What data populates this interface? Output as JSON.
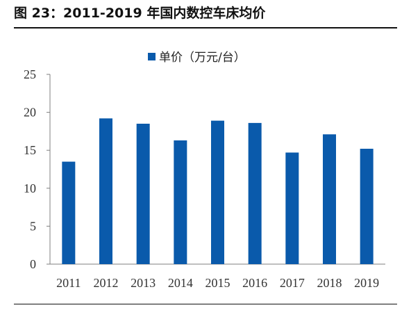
{
  "figure": {
    "title": "图 23：2011-2019 年国内数控车床均价"
  },
  "chart_data": {
    "type": "bar",
    "categories": [
      "2011",
      "2012",
      "2013",
      "2014",
      "2015",
      "2016",
      "2017",
      "2018",
      "2019"
    ],
    "series": [
      {
        "name": "单价（万元/台）",
        "color": "#0A5AAB",
        "values": [
          13.5,
          19.2,
          18.5,
          16.3,
          18.9,
          18.6,
          14.7,
          17.1,
          15.2
        ]
      }
    ],
    "yticks": [
      0,
      5,
      10,
      15,
      20,
      25
    ],
    "ylim": [
      0,
      25
    ],
    "grid": false,
    "legend": "top-center",
    "title": "",
    "xlabel": "",
    "ylabel": ""
  }
}
